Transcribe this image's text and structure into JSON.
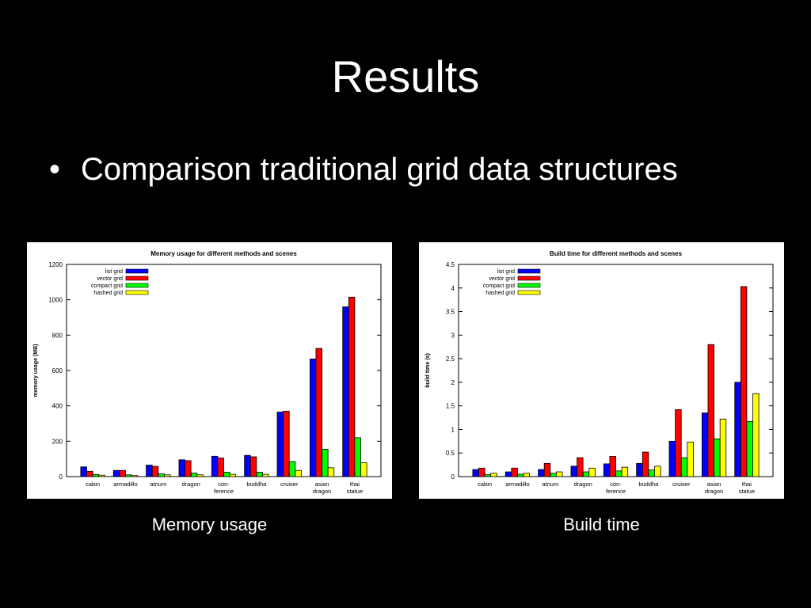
{
  "slide": {
    "title": "Results",
    "bullet": "Comparison traditional grid data structures",
    "captions": [
      "Memory usage",
      "Build time"
    ]
  },
  "chart_data": [
    {
      "type": "bar",
      "title": "Memory usage for different methods and scenes",
      "xlabel": "",
      "ylabel": "memory usage (MB)",
      "ylim": [
        0,
        1200
      ],
      "yticks": [
        "0",
        "200",
        "400",
        "600",
        "800",
        "1000",
        "1200"
      ],
      "grid": false,
      "legend_position": "top-left",
      "categories": [
        [
          "cabin"
        ],
        [
          "armadillo"
        ],
        [
          "atrium"
        ],
        [
          "dragon"
        ],
        [
          "con-",
          "ference"
        ],
        [
          "buddha"
        ],
        [
          "cruiser"
        ],
        [
          "asian",
          "dragon"
        ],
        [
          "thai",
          "statue"
        ]
      ],
      "series": [
        {
          "name": "list grid",
          "color": "#0000ff",
          "values": [
            55,
            35,
            65,
            95,
            115,
            120,
            365,
            665,
            960
          ]
        },
        {
          "name": "vector grid",
          "color": "#ff0000",
          "values": [
            30,
            35,
            58,
            90,
            105,
            112,
            370,
            725,
            1015
          ]
        },
        {
          "name": "compact grid",
          "color": "#00ff00",
          "values": [
            12,
            10,
            15,
            20,
            25,
            25,
            85,
            155,
            220
          ]
        },
        {
          "name": "hashed grid",
          "color": "#ffff00",
          "values": [
            8,
            6,
            10,
            10,
            13,
            13,
            35,
            50,
            78
          ]
        }
      ]
    },
    {
      "type": "bar",
      "title": "Build time for different methods and scenes",
      "xlabel": "",
      "ylabel": "build time (s)",
      "ylim": [
        0,
        4.5
      ],
      "yticks": [
        "0",
        "0.5",
        "1",
        "1.5",
        "2",
        "2.5",
        "3",
        "3.5",
        "4",
        "4.5"
      ],
      "grid": false,
      "legend_position": "top-left",
      "categories": [
        [
          "cabin"
        ],
        [
          "armadillo"
        ],
        [
          "atrium"
        ],
        [
          "dragon"
        ],
        [
          "con-",
          "ference"
        ],
        [
          "buddha"
        ],
        [
          "cruiser"
        ],
        [
          "asian",
          "dragon"
        ],
        [
          "thai",
          "statue"
        ]
      ],
      "series": [
        {
          "name": "list grid",
          "color": "#0000ff",
          "values": [
            0.15,
            0.1,
            0.15,
            0.22,
            0.27,
            0.28,
            0.75,
            1.35,
            2.0
          ]
        },
        {
          "name": "vector grid",
          "color": "#ff0000",
          "values": [
            0.18,
            0.18,
            0.28,
            0.4,
            0.43,
            0.52,
            1.42,
            2.8,
            4.03
          ]
        },
        {
          "name": "compact grid",
          "color": "#00ff00",
          "values": [
            0.04,
            0.05,
            0.07,
            0.1,
            0.12,
            0.14,
            0.4,
            0.8,
            1.17
          ]
        },
        {
          "name": "hashed grid",
          "color": "#ffff00",
          "values": [
            0.07,
            0.07,
            0.1,
            0.18,
            0.2,
            0.22,
            0.73,
            1.22,
            1.76
          ]
        }
      ]
    }
  ]
}
